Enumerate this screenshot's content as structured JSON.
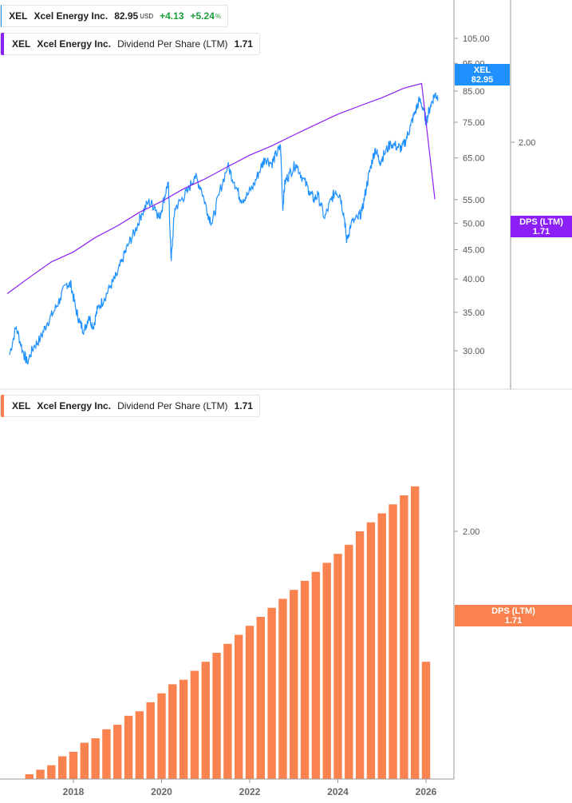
{
  "legend_price": {
    "ticker": "XEL",
    "name": "Xcel Energy Inc.",
    "price": "82.95",
    "currency": "USD",
    "change": "+4.13",
    "change_pct": "+5.24",
    "pct_sign": "%",
    "color": "#1e90ff"
  },
  "legend_dps_top": {
    "ticker": "XEL",
    "name": "Xcel Energy Inc.",
    "metric": "Dividend Per Share (LTM)",
    "value": "1.71",
    "color": "#8c1ff5"
  },
  "legend_dps_bottom": {
    "ticker": "XEL",
    "name": "Xcel Energy Inc.",
    "metric": "Dividend Per Share (LTM)",
    "value": "1.71",
    "color": "#f9824f"
  },
  "tags": {
    "price": {
      "line1": "XEL",
      "line2": "82.95"
    },
    "dps_top": {
      "line1": "DPS (LTM)",
      "line2": "1.71"
    },
    "dps_bottom": {
      "line1": "DPS (LTM)",
      "line2": "1.71"
    }
  },
  "chart_data": [
    {
      "type": "line",
      "scale": "log",
      "series": [
        {
          "name": "XEL",
          "color": "#1e90ff",
          "points": [
            [
              2016.55,
              29.5
            ],
            [
              2016.7,
              33.0
            ],
            [
              2016.85,
              30.0
            ],
            [
              2016.95,
              28.6
            ],
            [
              2017.1,
              30.5
            ],
            [
              2017.25,
              31.5
            ],
            [
              2017.4,
              33.5
            ],
            [
              2017.55,
              35.0
            ],
            [
              2017.7,
              37.0
            ],
            [
              2017.85,
              39.3
            ],
            [
              2017.95,
              39.0
            ],
            [
              2018.05,
              35.5
            ],
            [
              2018.15,
              33.5
            ],
            [
              2018.25,
              32.5
            ],
            [
              2018.35,
              34.5
            ],
            [
              2018.45,
              33.0
            ],
            [
              2018.55,
              35.5
            ],
            [
              2018.7,
              37.0
            ],
            [
              2018.85,
              39.0
            ],
            [
              2018.98,
              40.5
            ],
            [
              2019.1,
              43.0
            ],
            [
              2019.25,
              46.0
            ],
            [
              2019.4,
              48.5
            ],
            [
              2019.55,
              52.0
            ],
            [
              2019.7,
              54.5
            ],
            [
              2019.85,
              53.5
            ],
            [
              2019.95,
              51.0
            ],
            [
              2020.05,
              55.0
            ],
            [
              2020.15,
              59.0
            ],
            [
              2020.2,
              47.0
            ],
            [
              2020.22,
              43.0
            ],
            [
              2020.3,
              53.0
            ],
            [
              2020.45,
              55.0
            ],
            [
              2020.6,
              57.0
            ],
            [
              2020.75,
              60.5
            ],
            [
              2020.9,
              57.5
            ],
            [
              2021.05,
              52.0
            ],
            [
              2021.15,
              50.0
            ],
            [
              2021.3,
              56.0
            ],
            [
              2021.5,
              63.0
            ],
            [
              2021.65,
              59.0
            ],
            [
              2021.8,
              55.0
            ],
            [
              2021.95,
              56.0
            ],
            [
              2022.1,
              58.5
            ],
            [
              2022.25,
              62.5
            ],
            [
              2022.35,
              65.0
            ],
            [
              2022.5,
              63.5
            ],
            [
              2022.6,
              66.0
            ],
            [
              2022.7,
              68.0
            ],
            [
              2022.75,
              53.0
            ],
            [
              2022.8,
              59.0
            ],
            [
              2022.9,
              61.0
            ],
            [
              2023.05,
              63.5
            ],
            [
              2023.2,
              60.0
            ],
            [
              2023.35,
              57.0
            ],
            [
              2023.45,
              55.0
            ],
            [
              2023.55,
              56.0
            ],
            [
              2023.7,
              51.0
            ],
            [
              2023.85,
              55.0
            ],
            [
              2023.95,
              57.0
            ],
            [
              2024.05,
              56.0
            ],
            [
              2024.15,
              51.0
            ],
            [
              2024.2,
              46.5
            ],
            [
              2024.3,
              50.0
            ],
            [
              2024.45,
              51.0
            ],
            [
              2024.55,
              52.5
            ],
            [
              2024.65,
              58.0
            ],
            [
              2024.75,
              63.0
            ],
            [
              2024.85,
              67.5
            ],
            [
              2024.95,
              64.0
            ],
            [
              2025.05,
              66.0
            ],
            [
              2025.2,
              69.0
            ],
            [
              2025.35,
              68.0
            ],
            [
              2025.45,
              67.5
            ],
            [
              2025.55,
              70.0
            ],
            [
              2025.65,
              74.0
            ],
            [
              2025.75,
              78.0
            ],
            [
              2025.85,
              82.0
            ],
            [
              2025.95,
              79.0
            ],
            [
              2026.0,
              75.0
            ],
            [
              2026.1,
              80.0
            ],
            [
              2026.2,
              84.0
            ],
            [
              2026.27,
              82.95
            ]
          ]
        },
        {
          "name": "DPS (LTM)",
          "color": "#8c1ff5",
          "points": [
            [
              2016.5,
              1.32
            ],
            [
              2017.0,
              1.38
            ],
            [
              2017.5,
              1.44
            ],
            [
              2018.0,
              1.48
            ],
            [
              2018.5,
              1.54
            ],
            [
              2019.0,
              1.59
            ],
            [
              2019.5,
              1.65
            ],
            [
              2020.0,
              1.7
            ],
            [
              2020.5,
              1.76
            ],
            [
              2021.0,
              1.81
            ],
            [
              2021.5,
              1.87
            ],
            [
              2022.0,
              1.93
            ],
            [
              2022.5,
              1.98
            ],
            [
              2023.0,
              2.04
            ],
            [
              2023.5,
              2.1
            ],
            [
              2024.0,
              2.16
            ],
            [
              2024.5,
              2.21
            ],
            [
              2025.0,
              2.26
            ],
            [
              2025.5,
              2.32
            ],
            [
              2025.9,
              2.35
            ],
            [
              2026.2,
              1.71
            ]
          ]
        }
      ],
      "yticks_left_axis": [
        "105.00",
        "95.00",
        "85.00",
        "75.00",
        "65.00",
        "55.00",
        "50.00",
        "45.00",
        "40.00",
        "35.00",
        "30.00"
      ],
      "yticks_right_axis": [
        "2.00"
      ],
      "grid": false
    },
    {
      "type": "bar",
      "series": [
        {
          "name": "DPS (LTM)",
          "color": "#f9824f",
          "x": [
            2016.5,
            2016.75,
            2017.0,
            2017.25,
            2017.5,
            2017.75,
            2018.0,
            2018.25,
            2018.5,
            2018.75,
            2019.0,
            2019.25,
            2019.5,
            2019.75,
            2020.0,
            2020.25,
            2020.5,
            2020.75,
            2021.0,
            2021.25,
            2021.5,
            2021.75,
            2022.0,
            2022.25,
            2022.5,
            2022.75,
            2023.0,
            2023.25,
            2023.5,
            2023.75,
            2024.0,
            2024.25,
            2024.5,
            2024.75,
            2025.0,
            2025.25,
            2025.5,
            2025.75,
            2026.0
          ],
          "values": [
            1.43,
            1.44,
            1.46,
            1.47,
            1.48,
            1.5,
            1.51,
            1.53,
            1.54,
            1.56,
            1.57,
            1.59,
            1.6,
            1.62,
            1.64,
            1.66,
            1.67,
            1.69,
            1.71,
            1.73,
            1.75,
            1.77,
            1.79,
            1.81,
            1.83,
            1.85,
            1.87,
            1.89,
            1.91,
            1.93,
            1.95,
            1.97,
            2.0,
            2.02,
            2.04,
            2.06,
            2.08,
            2.1,
            1.71
          ]
        }
      ],
      "yticks": [
        "2.00"
      ],
      "xticks": [
        "2018",
        "2020",
        "2022",
        "2024",
        "2026"
      ],
      "grid": false
    }
  ]
}
